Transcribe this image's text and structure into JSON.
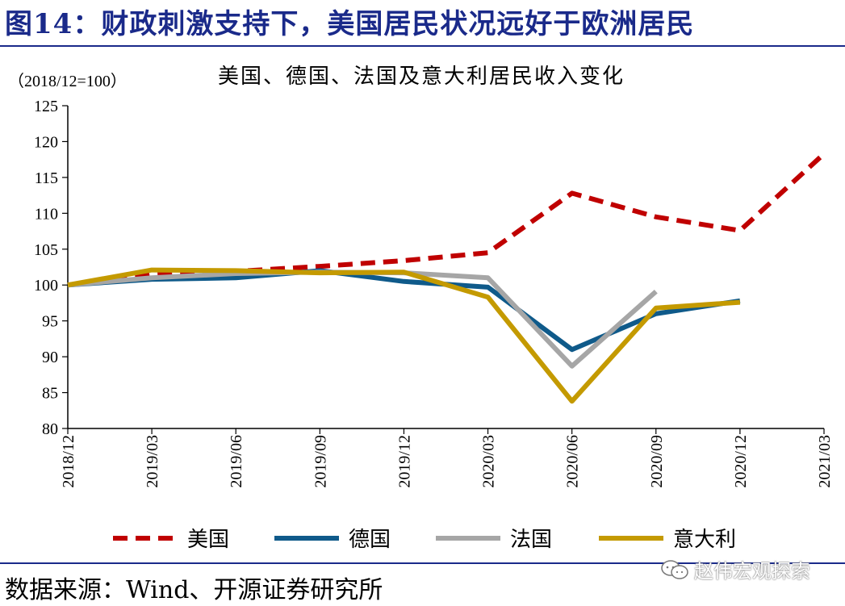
{
  "figure": {
    "title": "图14：财政刺激支持下，美国居民状况远好于欧洲居民",
    "source": "数据来源：Wind、开源证券研究所",
    "watermark": "赵伟宏观探索",
    "accent_color": "#1a2a8a"
  },
  "chart_data": {
    "type": "line",
    "title": "美国、德国、法国及意大利居民收入变化",
    "ylabel": "（2018/12=100）",
    "xlabel": "",
    "categories": [
      "2018/12",
      "2019/03",
      "2019/06",
      "2019/09",
      "2019/12",
      "2020/03",
      "2020/06",
      "2020/09",
      "2020/12",
      "2021/03"
    ],
    "ylim": [
      80,
      125
    ],
    "yticks": [
      80,
      85,
      90,
      95,
      100,
      105,
      110,
      115,
      120,
      125
    ],
    "grid": false,
    "legend_position": "bottom",
    "series": [
      {
        "name": "美国",
        "color": "#c00000",
        "dash": true,
        "values": [
          100,
          101.4,
          101.9,
          102.6,
          103.4,
          104.5,
          112.8,
          109.5,
          107.6,
          118.3
        ]
      },
      {
        "name": "德国",
        "color": "#0f5a8a",
        "dash": false,
        "values": [
          100,
          100.8,
          101.0,
          102.0,
          100.5,
          99.7,
          91.0,
          96.0,
          97.8,
          null
        ]
      },
      {
        "name": "法国",
        "color": "#a6a6a6",
        "dash": false,
        "values": [
          100,
          101.0,
          101.6,
          101.8,
          101.7,
          101.0,
          88.7,
          99.1,
          null,
          null
        ]
      },
      {
        "name": "意大利",
        "color": "#c49a00",
        "dash": false,
        "values": [
          100,
          102.1,
          102.0,
          101.7,
          101.8,
          98.3,
          83.8,
          96.8,
          97.6,
          null
        ]
      }
    ]
  }
}
